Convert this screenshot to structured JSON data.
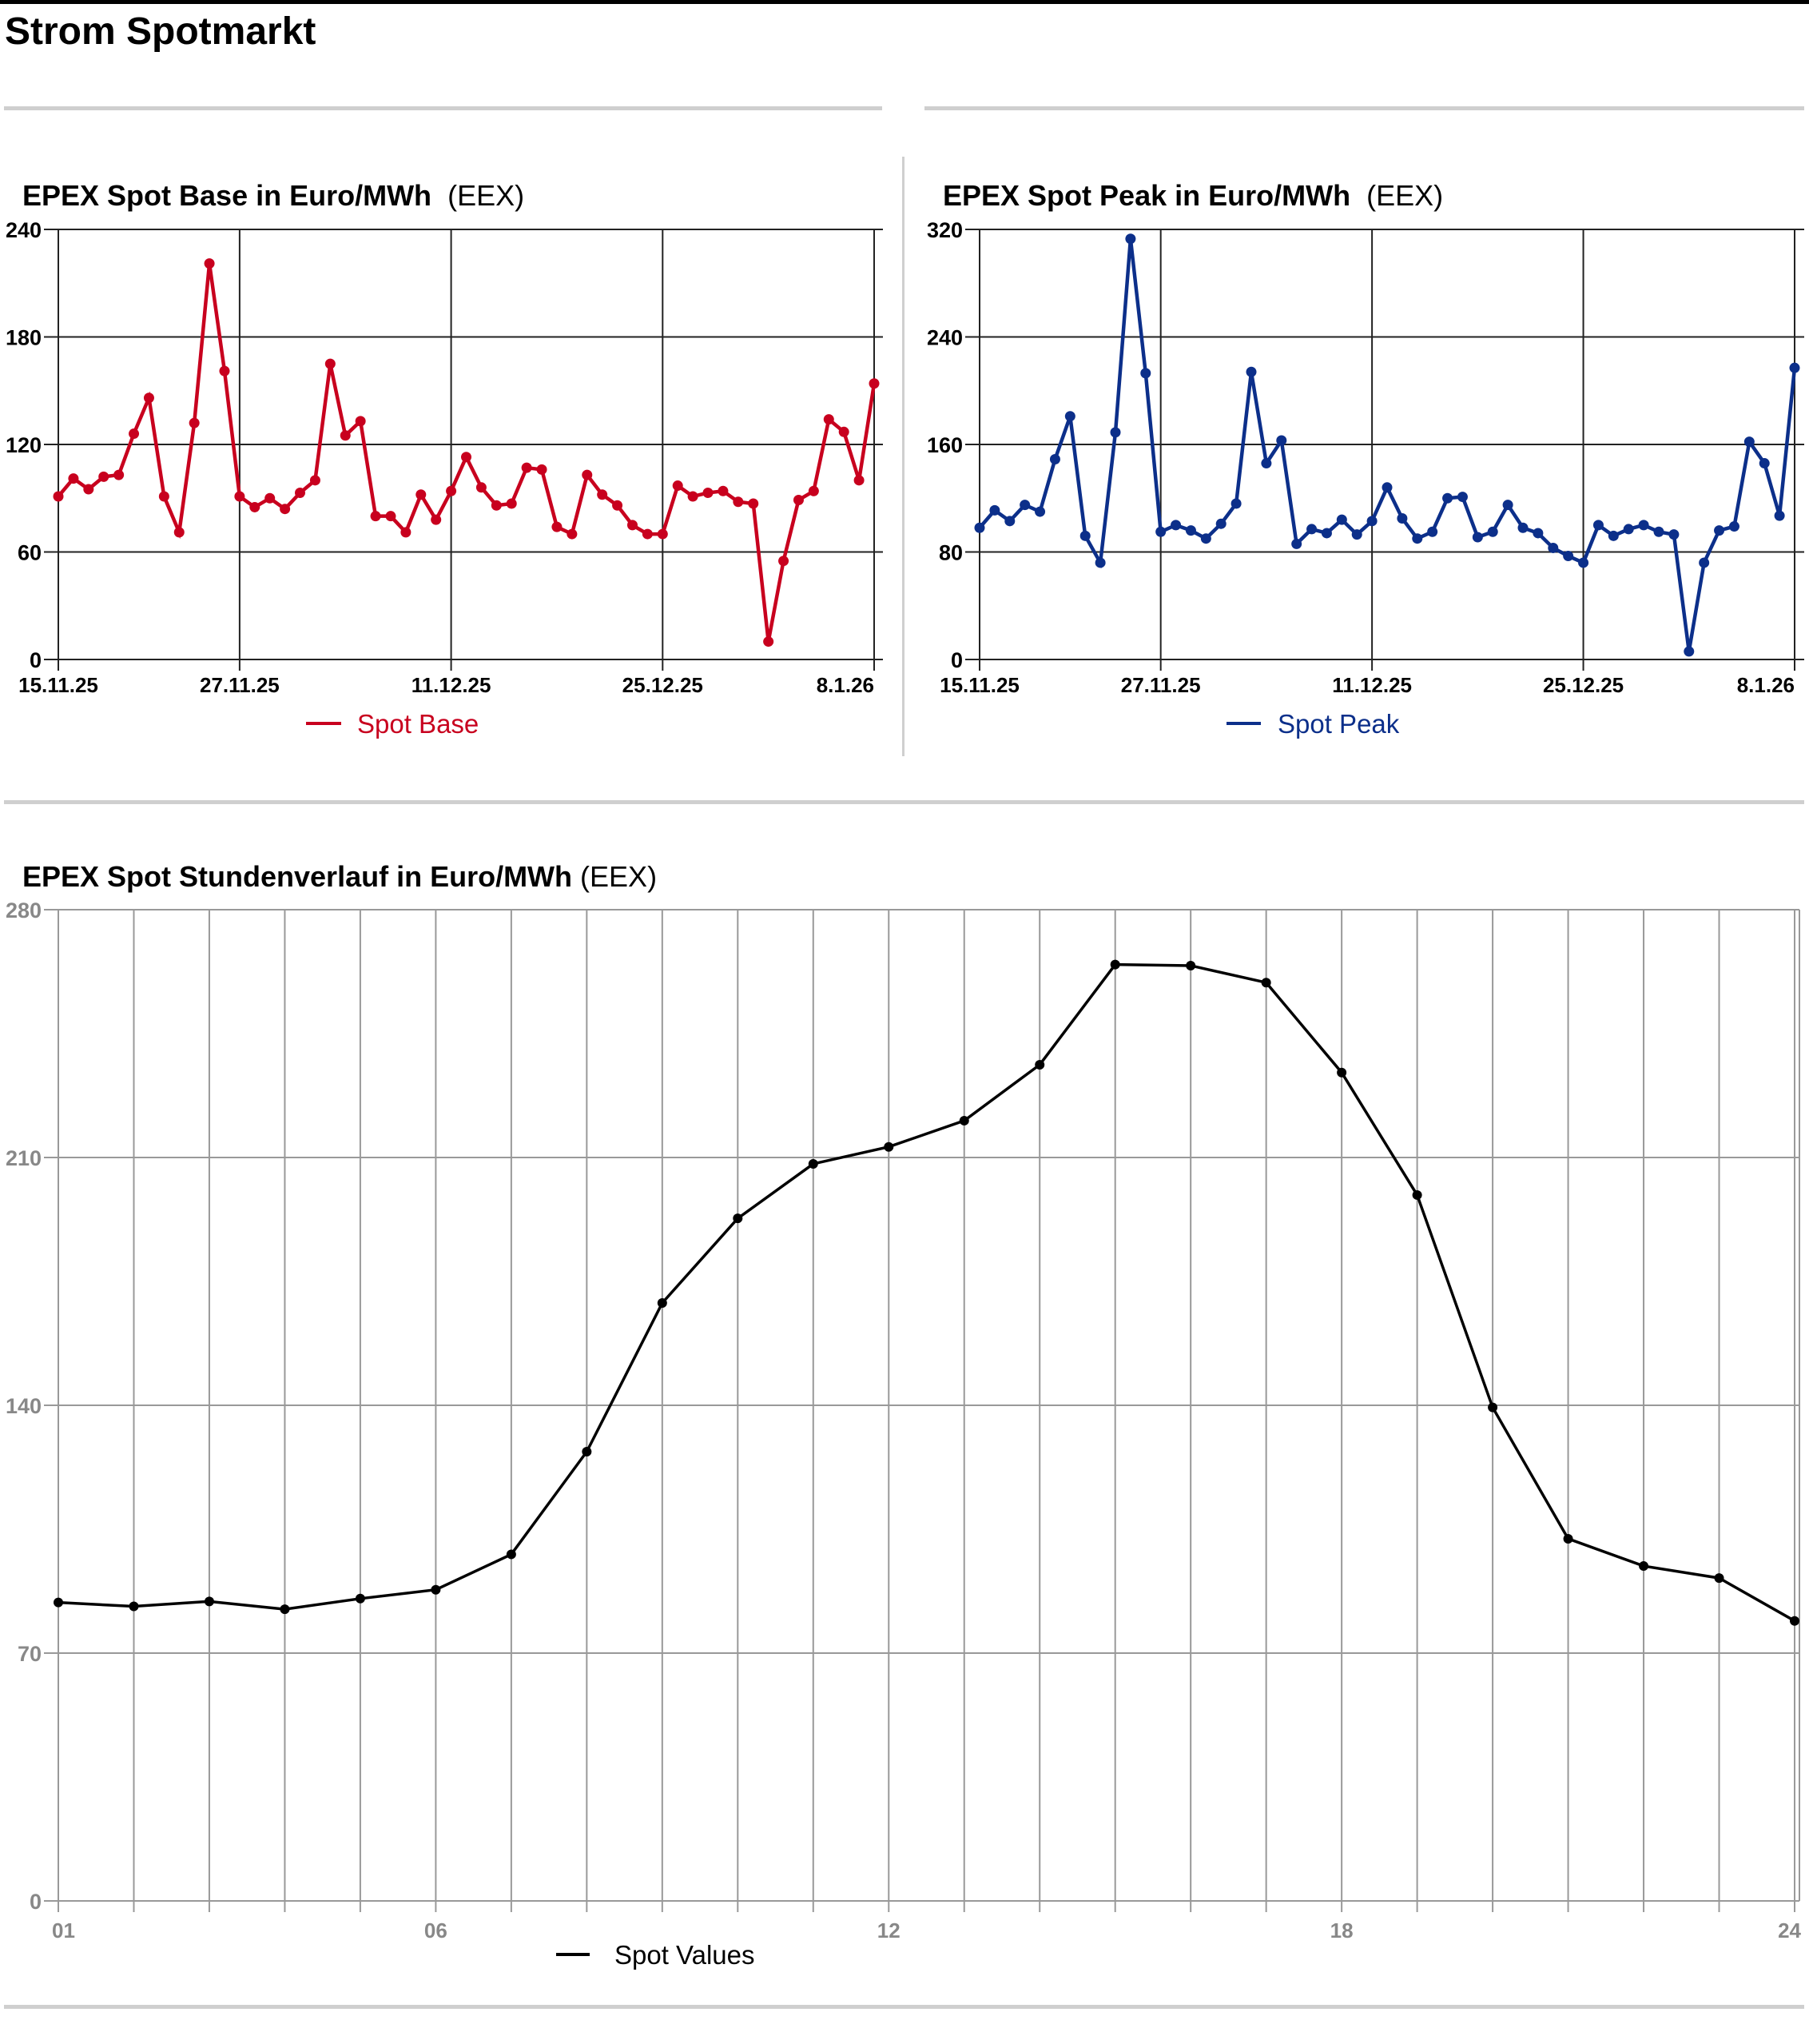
{
  "page": {
    "title": "Strom Spotmarkt"
  },
  "chart_data": [
    {
      "type": "line",
      "title": "EPEX Spot Base in Euro/MWh",
      "source": "(EEX)",
      "xlabel": "",
      "ylabel": "",
      "legend": "Spot Base",
      "legend_position": "bottom-center",
      "color": "#c8001e",
      "grid": true,
      "x_unit": "day",
      "xticks": [
        "15.11.25",
        "27.11.25",
        "11.12.25",
        "25.12.25",
        "8.1.26"
      ],
      "xtick_day_offsets": [
        0,
        12,
        26,
        40,
        54
      ],
      "ylim": [
        0,
        240
      ],
      "yticks": [
        "0",
        "60",
        "120",
        "180",
        "240"
      ],
      "values": [
        91,
        101,
        95,
        102,
        103,
        126,
        146,
        91,
        71,
        132,
        221,
        161,
        91,
        85,
        90,
        84,
        93,
        100,
        165,
        125,
        133,
        80,
        80,
        71,
        92,
        78,
        94,
        113,
        96,
        86,
        87,
        107,
        106,
        74,
        70,
        103,
        92,
        86,
        75,
        70,
        70,
        97,
        91,
        93,
        94,
        88,
        87,
        10,
        55,
        89,
        94,
        134,
        127,
        100,
        154
      ]
    },
    {
      "type": "line",
      "title": "EPEX Spot Peak in Euro/MWh",
      "source": "(EEX)",
      "xlabel": "",
      "ylabel": "",
      "legend": "Spot Peak",
      "legend_position": "bottom-center",
      "color": "#0c2f8a",
      "grid": true,
      "x_unit": "day",
      "xticks": [
        "15.11.25",
        "27.11.25",
        "11.12.25",
        "25.12.25",
        "8.1.26"
      ],
      "xtick_day_offsets": [
        0,
        12,
        26,
        40,
        54
      ],
      "ylim": [
        0,
        320
      ],
      "yticks": [
        "0",
        "80",
        "160",
        "240",
        "320"
      ],
      "values": [
        98,
        111,
        103,
        115,
        110,
        149,
        181,
        92,
        72,
        169,
        313,
        213,
        95,
        100,
        96,
        90,
        101,
        116,
        214,
        146,
        163,
        86,
        97,
        94,
        104,
        93,
        103,
        128,
        105,
        90,
        95,
        120,
        121,
        91,
        95,
        115,
        98,
        94,
        83,
        77,
        72,
        100,
        92,
        97,
        100,
        95,
        93,
        6,
        72,
        96,
        99,
        162,
        146,
        107,
        217
      ]
    },
    {
      "type": "line",
      "title": "EPEX Spot Stundenverlauf in Euro/MWh",
      "source": "(EEX)",
      "xlabel": "",
      "ylabel": "",
      "legend": "Spot Values",
      "legend_position": "bottom-center",
      "color": "#000000",
      "grid": true,
      "x": [
        1,
        2,
        3,
        4,
        5,
        6,
        7,
        8,
        9,
        10,
        11,
        12,
        13,
        14,
        15,
        16,
        17,
        18,
        19,
        20,
        21,
        22,
        23,
        24
      ],
      "xlim": [
        1,
        24
      ],
      "xticks": [
        "01",
        "06",
        "12",
        "18",
        "24"
      ],
      "xtick_values": [
        1,
        6,
        12,
        18,
        24
      ],
      "ylim": [
        0,
        280
      ],
      "yticks": [
        "0",
        "70",
        "140",
        "210",
        "280"
      ],
      "values": [
        84.3,
        83.2,
        84.6,
        82.4,
        85.4,
        87.9,
        97.9,
        126.9,
        168.9,
        192.8,
        208.2,
        213.0,
        220.4,
        236.2,
        264.5,
        264.2,
        259.4,
        234.0,
        199.4,
        139.4,
        102.3,
        94.6,
        91.2,
        79.1
      ]
    }
  ]
}
